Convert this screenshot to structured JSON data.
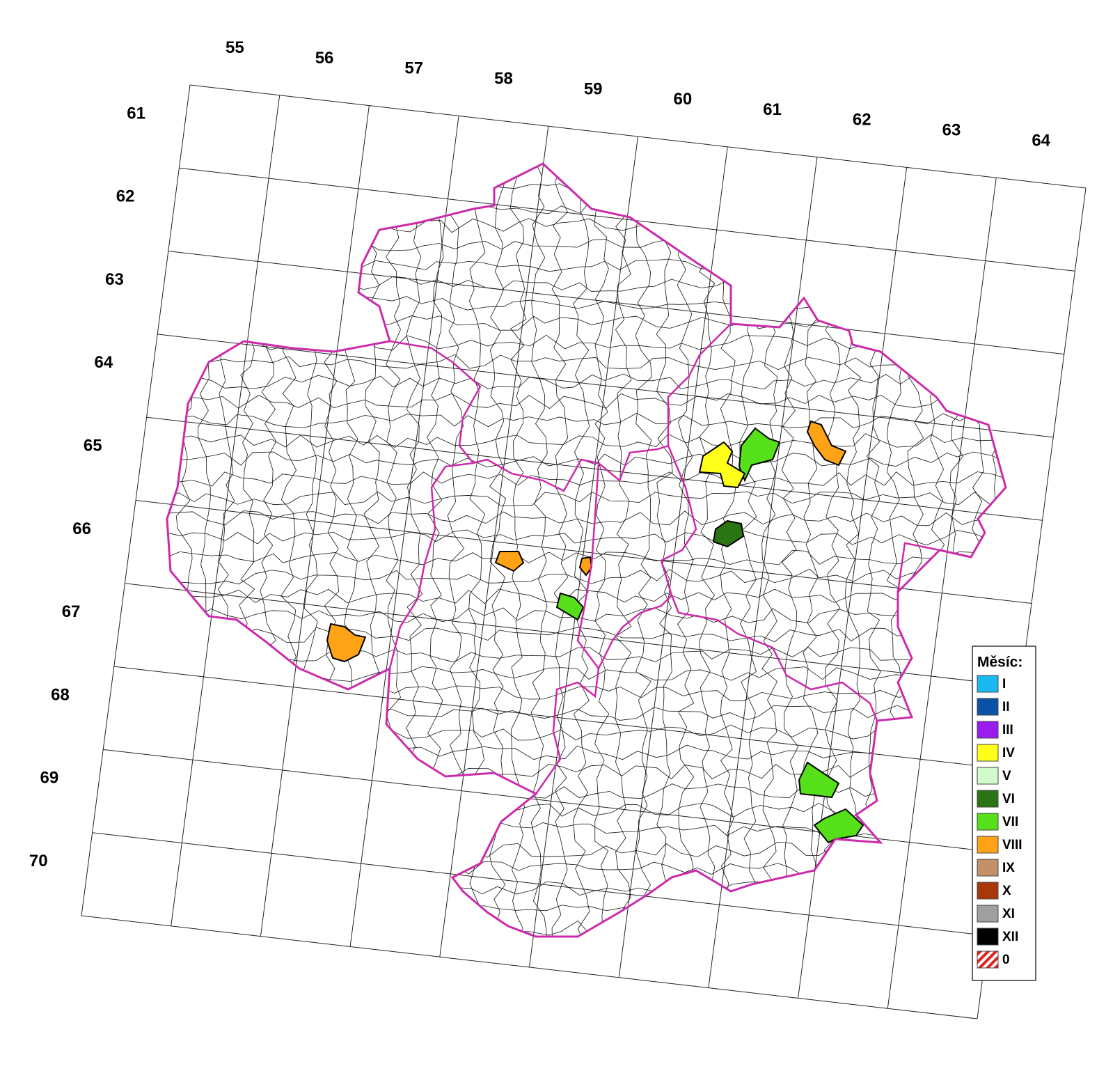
{
  "map": {
    "columns": [
      "55",
      "56",
      "57",
      "58",
      "59",
      "60",
      "61",
      "62",
      "63",
      "64"
    ],
    "rows": [
      "61",
      "62",
      "63",
      "64",
      "65",
      "66",
      "67",
      "68",
      "69",
      "70"
    ],
    "legend": {
      "title": "Měsíc:",
      "items": [
        {
          "label": "I",
          "color": "#1ab8f0"
        },
        {
          "label": "II",
          "color": "#0a52a8"
        },
        {
          "label": "III",
          "color": "#9b1cf0"
        },
        {
          "label": "IV",
          "color": "#ffff1a"
        },
        {
          "label": "V",
          "color": "#d2fbcc"
        },
        {
          "label": "VI",
          "color": "#2b7414"
        },
        {
          "label": "VII",
          "color": "#55e01a"
        },
        {
          "label": "VIII",
          "color": "#ffa316"
        },
        {
          "label": "IX",
          "color": "#c3906a"
        },
        {
          "label": "X",
          "color": "#a8380c"
        },
        {
          "label": "XI",
          "color": "#a0a0a0"
        },
        {
          "label": "XII",
          "color": "#000000"
        },
        {
          "label": "0",
          "color": "hatch"
        }
      ]
    }
  }
}
